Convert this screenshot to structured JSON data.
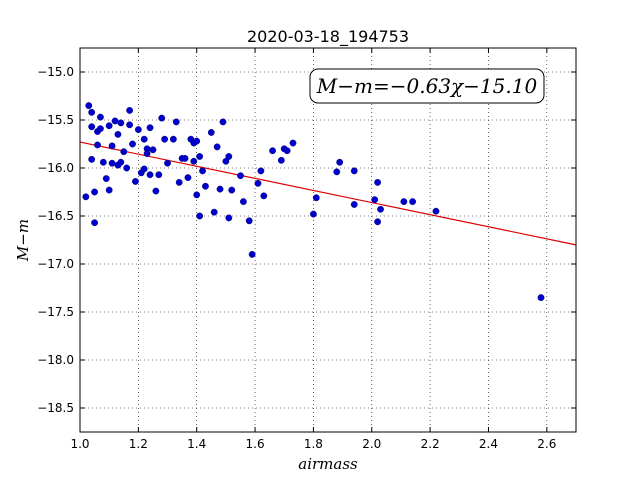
{
  "chart_data": {
    "type": "scatter",
    "title": "2020-03-18_194753",
    "xlabel": "airmass",
    "ylabel": "M−m",
    "xlim": [
      1.0,
      2.7
    ],
    "ylim": [
      -18.75,
      -14.75
    ],
    "x_ticks": [
      "1.0",
      "1.2",
      "1.4",
      "1.6",
      "1.8",
      "2.0",
      "2.2",
      "2.4",
      "2.6"
    ],
    "y_ticks": [
      "−15.0",
      "−15.5",
      "−16.0",
      "−16.5",
      "−17.0",
      "−17.5",
      "−18.0",
      "−18.5"
    ],
    "grid": true,
    "annotation": "M−m=−0.63χ−15.10",
    "fit": {
      "slope": -0.63,
      "intercept": -15.1,
      "x_range": [
        1.0,
        2.7
      ]
    },
    "colors": {
      "points": "#0000cc",
      "fit": "#dd0000"
    },
    "points": [
      [
        1.02,
        -16.3
      ],
      [
        1.03,
        -15.35
      ],
      [
        1.04,
        -15.42
      ],
      [
        1.04,
        -15.57
      ],
      [
        1.04,
        -15.91
      ],
      [
        1.05,
        -16.25
      ],
      [
        1.05,
        -16.57
      ],
      [
        1.06,
        -15.62
      ],
      [
        1.06,
        -15.76
      ],
      [
        1.07,
        -15.47
      ],
      [
        1.07,
        -15.59
      ],
      [
        1.08,
        -15.94
      ],
      [
        1.09,
        -16.11
      ],
      [
        1.1,
        -15.56
      ],
      [
        1.1,
        -16.23
      ],
      [
        1.11,
        -15.77
      ],
      [
        1.11,
        -15.95
      ],
      [
        1.12,
        -15.51
      ],
      [
        1.13,
        -15.65
      ],
      [
        1.13,
        -15.97
      ],
      [
        1.14,
        -15.53
      ],
      [
        1.14,
        -15.94
      ],
      [
        1.15,
        -15.83
      ],
      [
        1.16,
        -16.0
      ],
      [
        1.17,
        -15.4
      ],
      [
        1.17,
        -15.55
      ],
      [
        1.18,
        -15.75
      ],
      [
        1.19,
        -16.14
      ],
      [
        1.2,
        -15.6
      ],
      [
        1.21,
        -16.05
      ],
      [
        1.22,
        -15.7
      ],
      [
        1.22,
        -16.01
      ],
      [
        1.23,
        -15.8
      ],
      [
        1.23,
        -15.85
      ],
      [
        1.24,
        -16.07
      ],
      [
        1.24,
        -15.58
      ],
      [
        1.25,
        -15.81
      ],
      [
        1.26,
        -16.24
      ],
      [
        1.27,
        -16.07
      ],
      [
        1.28,
        -15.48
      ],
      [
        1.29,
        -15.7
      ],
      [
        1.3,
        -15.95
      ],
      [
        1.32,
        -15.7
      ],
      [
        1.33,
        -15.52
      ],
      [
        1.34,
        -16.15
      ],
      [
        1.35,
        -15.9
      ],
      [
        1.36,
        -15.9
      ],
      [
        1.37,
        -16.1
      ],
      [
        1.38,
        -15.7
      ],
      [
        1.39,
        -15.74
      ],
      [
        1.39,
        -15.93
      ],
      [
        1.4,
        -16.28
      ],
      [
        1.4,
        -15.72
      ],
      [
        1.41,
        -15.88
      ],
      [
        1.41,
        -16.5
      ],
      [
        1.42,
        -16.03
      ],
      [
        1.43,
        -16.19
      ],
      [
        1.45,
        -15.63
      ],
      [
        1.46,
        -16.46
      ],
      [
        1.47,
        -15.78
      ],
      [
        1.48,
        -16.22
      ],
      [
        1.49,
        -15.52
      ],
      [
        1.5,
        -15.93
      ],
      [
        1.51,
        -16.52
      ],
      [
        1.51,
        -15.88
      ],
      [
        1.52,
        -16.23
      ],
      [
        1.55,
        -16.08
      ],
      [
        1.56,
        -16.35
      ],
      [
        1.58,
        -16.55
      ],
      [
        1.59,
        -16.9
      ],
      [
        1.61,
        -16.16
      ],
      [
        1.62,
        -16.03
      ],
      [
        1.63,
        -16.29
      ],
      [
        1.66,
        -15.82
      ],
      [
        1.69,
        -15.92
      ],
      [
        1.7,
        -15.8
      ],
      [
        1.71,
        -15.82
      ],
      [
        1.73,
        -15.74
      ],
      [
        1.8,
        -16.48
      ],
      [
        1.81,
        -16.31
      ],
      [
        1.88,
        -16.04
      ],
      [
        1.89,
        -15.94
      ],
      [
        1.94,
        -16.38
      ],
      [
        1.94,
        -16.03
      ],
      [
        2.01,
        -16.33
      ],
      [
        2.02,
        -16.56
      ],
      [
        2.02,
        -16.15
      ],
      [
        2.03,
        -16.43
      ],
      [
        2.11,
        -16.35
      ],
      [
        2.14,
        -16.35
      ],
      [
        2.22,
        -16.45
      ],
      [
        2.58,
        -17.35
      ]
    ]
  }
}
